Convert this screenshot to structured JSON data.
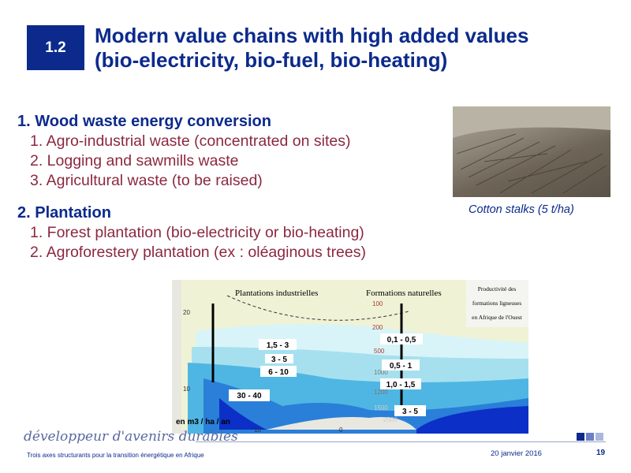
{
  "header": {
    "section_number": "1.2",
    "title_line1": "Modern value chains with high added values",
    "title_line2": "(bio-electricity, bio-fuel, bio-heating)"
  },
  "sections": [
    {
      "heading": "1. Wood waste energy conversion",
      "items": [
        "1.  Agro-industrial waste (concentrated on sites)",
        "2.  Logging and sawmills waste",
        "3.  Agricultural waste (to be raised)"
      ]
    },
    {
      "heading": "2. Plantation",
      "items": [
        "1.  Forest plantation (bio-electricity or bio-heating)",
        "2.  Agroforestery plantation (ex : oléaginous trees)"
      ]
    }
  ],
  "photo": {
    "caption": "Cotton stalks (5 t/ha)"
  },
  "map": {
    "col1": "Plantations industrielles",
    "col2": "Formations naturelles",
    "legend": [
      "Productivité des",
      "formations ligneuses",
      "en Afrique de l'Ouest"
    ],
    "unit": "en m3 / ha / an",
    "industrial": [
      "1,5 - 3",
      "3 - 5",
      "6 - 10",
      "30 - 40"
    ],
    "natural": [
      "0,1 - 0,5",
      "0,5 - 1",
      "1,0 - 1,5",
      "3 - 5"
    ],
    "isohyets": [
      "100",
      "200",
      "500",
      "1000",
      "1200",
      "1500",
      "2500"
    ],
    "lat": [
      "20",
      "10"
    ],
    "lon": [
      "10",
      "0"
    ]
  },
  "footer": {
    "logo": "développeur d'avenirs durables",
    "text": "Trois axes structurants pour la transition énergétique en Afrique",
    "date": "20 janvier 2016",
    "page": "19"
  },
  "colors": {
    "brand": "#0b2a8c",
    "body": "#8b2840"
  }
}
